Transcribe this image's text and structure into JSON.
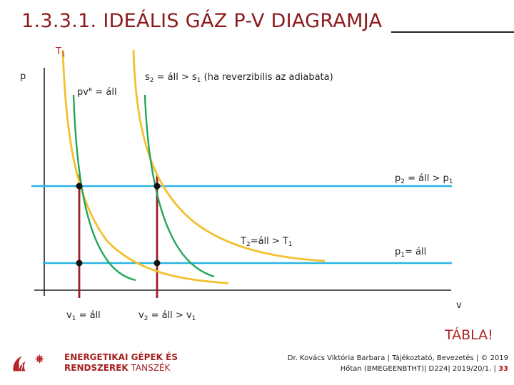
{
  "title": "1.3.3.1. IDEÁLIS GÁZ P-V DIAGRAMJA",
  "diagram": {
    "axis_y_label": "p",
    "axis_x_label": "v",
    "label_T1": "T",
    "label_T1_sub": "1",
    "label_adiabat_eq": "pv",
    "label_adiabat_exp": "κ",
    "label_adiabat_rest": " = áll",
    "label_s2_a": "s",
    "label_s2_sub": "2",
    "label_s2_b": " = áll > s",
    "label_s2_sub2": "1",
    "label_s2_c": " (ha reverzibilis  az adiabata)",
    "label_p2_a": "p",
    "label_p2_sub": "2",
    "label_p2_b": " = áll > p",
    "label_p2_sub2": "1",
    "label_p1_a": "p",
    "label_p1_sub": "1",
    "label_p1_b": "= áll",
    "label_T2_a": "T",
    "label_T2_sub": "2",
    "label_T2_b": "=áll > T",
    "label_T2_sub2": "1",
    "label_v1_a": "v",
    "label_v1_sub": "1",
    "label_v1_b": " = áll",
    "label_v2_a": "v",
    "label_v2_sub": "2",
    "label_v2_b": " = áll > v",
    "label_v2_sub2": "1",
    "colors": {
      "isotherm": "#f2c12e",
      "adiabat": "#22a55a",
      "isobar": "#2bb3e3",
      "isochore": "#a01c24",
      "axis": "#222222",
      "point": "#111111"
    }
  },
  "tabla_label": "TÁBLA!",
  "logo": {
    "line1": "ENERGETIKAI GÉPEK ÉS",
    "line2_bold": "RENDSZEREK",
    "line2_thin": " TANSZÉK",
    "symbol": "η",
    "icon": "gear-flame-icon"
  },
  "footer": {
    "line1": "Dr. Kovács Viktória Barbara | Tájékoztató, Bevezetés | © 2019",
    "line2": "Hőtan (BMEGEENBTHT)| D224| 2019/20/1. | ",
    "page": "33"
  }
}
